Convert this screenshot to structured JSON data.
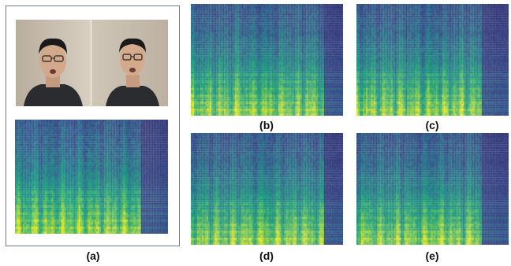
{
  "figure": {
    "panels": [
      {
        "id": "a",
        "caption": "(a)",
        "content": "face-photos-and-spectrogram"
      },
      {
        "id": "b",
        "caption": "(b)",
        "content": "spectrogram"
      },
      {
        "id": "c",
        "caption": "(c)",
        "content": "spectrogram"
      },
      {
        "id": "d",
        "caption": "(d)",
        "content": "spectrogram"
      },
      {
        "id": "e",
        "caption": "(e)",
        "content": "spectrogram"
      }
    ],
    "colormap": [
      "#34215f",
      "#3b4a8a",
      "#2c7a8e",
      "#22a07f",
      "#6cc45a",
      "#d9e22c",
      "#f0ec30"
    ]
  }
}
